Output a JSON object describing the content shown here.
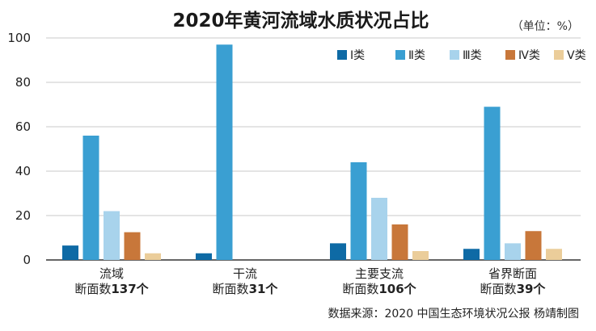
{
  "chart_data": {
    "type": "bar",
    "title": "2020年黄河流域水质状况占比",
    "unit": "（单位：%）",
    "ylim": [
      0,
      100
    ],
    "yticks": [
      0,
      20,
      40,
      60,
      80,
      100
    ],
    "grid": true,
    "legend_position": "top-right",
    "categories": [
      {
        "line1": "流域",
        "line2_prefix": "断面数",
        "line2_bold": "137个"
      },
      {
        "line1": "干流",
        "line2_prefix": "断面数",
        "line2_bold": "31个"
      },
      {
        "line1": "主要支流",
        "line2_prefix": "断面数",
        "line2_bold": "106个"
      },
      {
        "line1": "省界断面",
        "line2_prefix": "断面数",
        "line2_bold": "39个"
      }
    ],
    "series": [
      {
        "name": "Ⅰ类",
        "color": "#0e6aa5",
        "values": [
          6.5,
          3,
          7.5,
          5
        ]
      },
      {
        "name": "Ⅱ类",
        "color": "#3a9fd2",
        "values": [
          56,
          97,
          44,
          69
        ]
      },
      {
        "name": "Ⅲ类",
        "color": "#a8d3ec",
        "values": [
          22,
          0,
          28,
          7.5
        ]
      },
      {
        "name": "Ⅳ类",
        "color": "#c8773a",
        "values": [
          12.5,
          0,
          16,
          13
        ]
      },
      {
        "name": "Ⅴ类",
        "color": "#ebcd9a",
        "values": [
          3,
          0,
          4,
          5
        ]
      }
    ],
    "source": "数据来源：2020 中国生态环境状况公报    杨靖制图"
  }
}
